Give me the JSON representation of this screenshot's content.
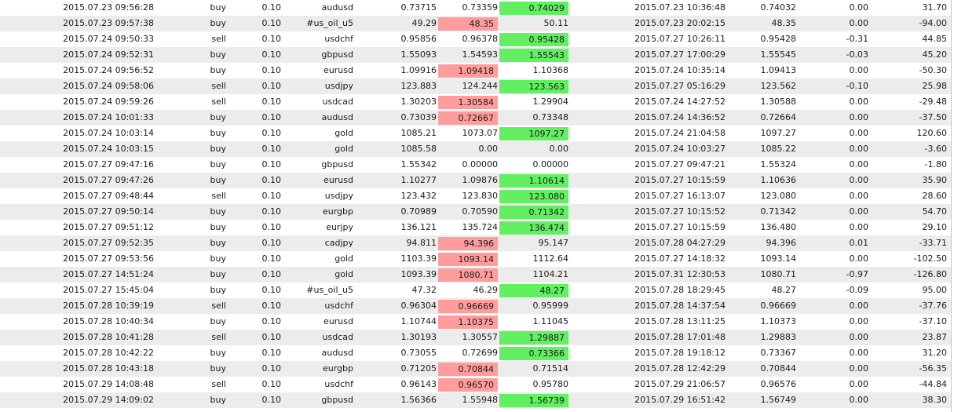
{
  "colors": {
    "stop_hit": "#ff9d9d",
    "target_hit": "#62ef62",
    "alt_row": "#ececec"
  },
  "rows": [
    {
      "open_time": "2015.07.23 09:56:28",
      "type": "buy",
      "size": "0.10",
      "symbol": "audusd",
      "open_price": "0.73715",
      "sl": "0.73359",
      "tp": "0.74029",
      "close_time": "2015.07.23 10:36:48",
      "close_price": "0.74032",
      "swap": "0.00",
      "profit": "31.70",
      "hl": "tp"
    },
    {
      "open_time": "2015.07.23 09:57:38",
      "type": "buy",
      "size": "0.10",
      "symbol": "#us_oil_u5",
      "open_price": "49.29",
      "sl": "48.35",
      "tp": "50.11",
      "close_time": "2015.07.23 20:02:15",
      "close_price": "48.35",
      "swap": "0.00",
      "profit": "-94.00",
      "hl": "sl"
    },
    {
      "open_time": "2015.07.24 09:50:33",
      "type": "sell",
      "size": "0.10",
      "symbol": "usdchf",
      "open_price": "0.95856",
      "sl": "0.96378",
      "tp": "0.95428",
      "close_time": "2015.07.27 10:26:11",
      "close_price": "0.95428",
      "swap": "-0.31",
      "profit": "44.85",
      "hl": "tp"
    },
    {
      "open_time": "2015.07.24 09:52:31",
      "type": "buy",
      "size": "0.10",
      "symbol": "gbpusd",
      "open_price": "1.55093",
      "sl": "1.54593",
      "tp": "1.55543",
      "close_time": "2015.07.27 17:00:29",
      "close_price": "1.55545",
      "swap": "-0.03",
      "profit": "45.20",
      "hl": "tp"
    },
    {
      "open_time": "2015.07.24 09:56:52",
      "type": "buy",
      "size": "0.10",
      "symbol": "eurusd",
      "open_price": "1.09916",
      "sl": "1.09418",
      "tp": "1.10368",
      "close_time": "2015.07.24 10:35:14",
      "close_price": "1.09413",
      "swap": "0.00",
      "profit": "-50.30",
      "hl": "sl"
    },
    {
      "open_time": "2015.07.24 09:58:06",
      "type": "sell",
      "size": "0.10",
      "symbol": "usdjpy",
      "open_price": "123.883",
      "sl": "124.244",
      "tp": "123.563",
      "close_time": "2015.07.27 05:16:29",
      "close_price": "123.562",
      "swap": "-0.10",
      "profit": "25.98",
      "hl": "tp"
    },
    {
      "open_time": "2015.07.24 09:59:26",
      "type": "sell",
      "size": "0.10",
      "symbol": "usdcad",
      "open_price": "1.30203",
      "sl": "1.30584",
      "tp": "1.29904",
      "close_time": "2015.07.24 14:27:52",
      "close_price": "1.30588",
      "swap": "0.00",
      "profit": "-29.48",
      "hl": "sl"
    },
    {
      "open_time": "2015.07.24 10:01:33",
      "type": "buy",
      "size": "0.10",
      "symbol": "audusd",
      "open_price": "0.73039",
      "sl": "0.72667",
      "tp": "0.73348",
      "close_time": "2015.07.24 14:36:52",
      "close_price": "0.72664",
      "swap": "0.00",
      "profit": "-37.50",
      "hl": "sl"
    },
    {
      "open_time": "2015.07.24 10:03:14",
      "type": "buy",
      "size": "0.10",
      "symbol": "gold",
      "open_price": "1085.21",
      "sl": "1073.07",
      "tp": "1097.27",
      "close_time": "2015.07.24 21:04:58",
      "close_price": "1097.27",
      "swap": "0.00",
      "profit": "120.60",
      "hl": "tp"
    },
    {
      "open_time": "2015.07.24 10:03:15",
      "type": "buy",
      "size": "0.10",
      "symbol": "gold",
      "open_price": "1085.58",
      "sl": "0.00",
      "tp": "0.00",
      "close_time": "2015.07.24 10:03:27",
      "close_price": "1085.22",
      "swap": "0.00",
      "profit": "-3.60",
      "hl": ""
    },
    {
      "open_time": "2015.07.27 09:47:16",
      "type": "buy",
      "size": "0.10",
      "symbol": "gbpusd",
      "open_price": "1.55342",
      "sl": "0.00000",
      "tp": "0.00000",
      "close_time": "2015.07.27 09:47:21",
      "close_price": "1.55324",
      "swap": "0.00",
      "profit": "-1.80",
      "hl": ""
    },
    {
      "open_time": "2015.07.27 09:47:26",
      "type": "buy",
      "size": "0.10",
      "symbol": "eurusd",
      "open_price": "1.10277",
      "sl": "1.09876",
      "tp": "1.10614",
      "close_time": "2015.07.27 10:15:59",
      "close_price": "1.10636",
      "swap": "0.00",
      "profit": "35.90",
      "hl": "tp"
    },
    {
      "open_time": "2015.07.27 09:48:44",
      "type": "sell",
      "size": "0.10",
      "symbol": "usdjpy",
      "open_price": "123.432",
      "sl": "123.830",
      "tp": "123.080",
      "close_time": "2015.07.27 16:13:07",
      "close_price": "123.080",
      "swap": "0.00",
      "profit": "28.60",
      "hl": "tp"
    },
    {
      "open_time": "2015.07.27 09:50:14",
      "type": "buy",
      "size": "0.10",
      "symbol": "eurgbp",
      "open_price": "0.70989",
      "sl": "0.70590",
      "tp": "0.71342",
      "close_time": "2015.07.27 10:15:52",
      "close_price": "0.71342",
      "swap": "0.00",
      "profit": "54.70",
      "hl": "tp"
    },
    {
      "open_time": "2015.07.27 09:51:12",
      "type": "buy",
      "size": "0.10",
      "symbol": "eurjpy",
      "open_price": "136.121",
      "sl": "135.724",
      "tp": "136.474",
      "close_time": "2015.07.27 10:15:59",
      "close_price": "136.480",
      "swap": "0.00",
      "profit": "29.10",
      "hl": "tp"
    },
    {
      "open_time": "2015.07.27 09:52:35",
      "type": "buy",
      "size": "0.10",
      "symbol": "cadjpy",
      "open_price": "94.811",
      "sl": "94.396",
      "tp": "95.147",
      "close_time": "2015.07.28 04:27:29",
      "close_price": "94.396",
      "swap": "0.01",
      "profit": "-33.71",
      "hl": "sl"
    },
    {
      "open_time": "2015.07.27 09:53:56",
      "type": "buy",
      "size": "0.10",
      "symbol": "gold",
      "open_price": "1103.39",
      "sl": "1093.14",
      "tp": "1112.64",
      "close_time": "2015.07.27 14:18:32",
      "close_price": "1093.14",
      "swap": "0.00",
      "profit": "-102.50",
      "hl": "sl"
    },
    {
      "open_time": "2015.07.27 14:51:24",
      "type": "buy",
      "size": "0.10",
      "symbol": "gold",
      "open_price": "1093.39",
      "sl": "1080.71",
      "tp": "1104.21",
      "close_time": "2015.07.31 12:30:53",
      "close_price": "1080.71",
      "swap": "-0.97",
      "profit": "-126.80",
      "hl": "sl"
    },
    {
      "open_time": "2015.07.27 15:45:04",
      "type": "buy",
      "size": "0.10",
      "symbol": "#us_oil_u5",
      "open_price": "47.32",
      "sl": "46.29",
      "tp": "48.27",
      "close_time": "2015.07.28 18:29:45",
      "close_price": "48.27",
      "swap": "-0.09",
      "profit": "95.00",
      "hl": "tp"
    },
    {
      "open_time": "2015.07.28 10:39:19",
      "type": "sell",
      "size": "0.10",
      "symbol": "usdchf",
      "open_price": "0.96304",
      "sl": "0.96669",
      "tp": "0.95999",
      "close_time": "2015.07.28 14:37:54",
      "close_price": "0.96669",
      "swap": "0.00",
      "profit": "-37.76",
      "hl": "sl"
    },
    {
      "open_time": "2015.07.28 10:40:34",
      "type": "buy",
      "size": "0.10",
      "symbol": "eurusd",
      "open_price": "1.10744",
      "sl": "1.10375",
      "tp": "1.11045",
      "close_time": "2015.07.28 13:11:25",
      "close_price": "1.10373",
      "swap": "0.00",
      "profit": "-37.10",
      "hl": "sl"
    },
    {
      "open_time": "2015.07.28 10:41:28",
      "type": "sell",
      "size": "0.10",
      "symbol": "usdcad",
      "open_price": "1.30193",
      "sl": "1.30557",
      "tp": "1.29887",
      "close_time": "2015.07.28 17:01:48",
      "close_price": "1.29883",
      "swap": "0.00",
      "profit": "23.87",
      "hl": "tp"
    },
    {
      "open_time": "2015.07.28 10:42:22",
      "type": "buy",
      "size": "0.10",
      "symbol": "audusd",
      "open_price": "0.73055",
      "sl": "0.72699",
      "tp": "0.73366",
      "close_time": "2015.07.28 19:18:12",
      "close_price": "0.73367",
      "swap": "0.00",
      "profit": "31.20",
      "hl": "tp"
    },
    {
      "open_time": "2015.07.28 10:43:18",
      "type": "buy",
      "size": "0.10",
      "symbol": "eurgbp",
      "open_price": "0.71205",
      "sl": "0.70844",
      "tp": "0.71514",
      "close_time": "2015.07.28 12:42:29",
      "close_price": "0.70844",
      "swap": "0.00",
      "profit": "-56.35",
      "hl": "sl"
    },
    {
      "open_time": "2015.07.29 14:08:48",
      "type": "sell",
      "size": "0.10",
      "symbol": "usdchf",
      "open_price": "0.96143",
      "sl": "0.96570",
      "tp": "0.95780",
      "close_time": "2015.07.29 21:06:57",
      "close_price": "0.96576",
      "swap": "0.00",
      "profit": "-44.84",
      "hl": "sl"
    },
    {
      "open_time": "2015.07.29 14:09:02",
      "type": "buy",
      "size": "0.10",
      "symbol": "gbpusd",
      "open_price": "1.56366",
      "sl": "1.55948",
      "tp": "1.56739",
      "close_time": "2015.07.29 16:51:42",
      "close_price": "1.56749",
      "swap": "0.00",
      "profit": "38.30",
      "hl": "tp"
    }
  ]
}
